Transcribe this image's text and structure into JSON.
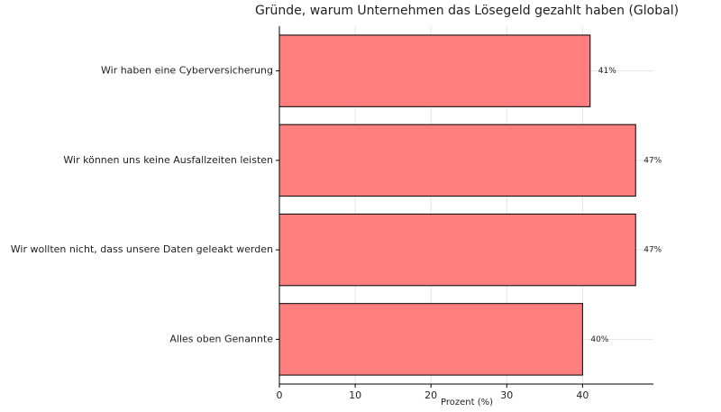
{
  "chart_data": {
    "type": "barh",
    "title": "Gründe, warum Unternehmen das Lösegeld gezahlt haben (Global)",
    "xlabel": "Prozent (%)",
    "categories": [
      "Wir haben eine Cyberversicherung",
      "Wir können uns keine Ausfallzeiten leisten",
      "Wir wollten nicht, dass unsere Daten geleakt werden",
      "Alles oben Genannte"
    ],
    "values": [
      41,
      47,
      47,
      40
    ],
    "value_labels": [
      "41%",
      "47%",
      "47%",
      "40%"
    ],
    "color": "#ff7f7f",
    "xlim": [
      0,
      49.35
    ],
    "xticks": [
      0,
      10,
      20,
      30,
      40
    ],
    "grid": true
  }
}
